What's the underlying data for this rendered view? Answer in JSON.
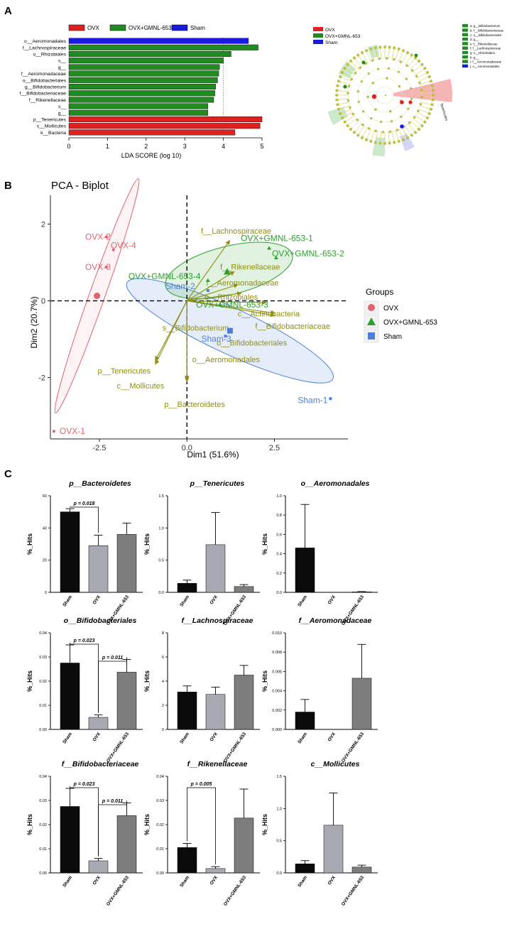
{
  "panel_labels": {
    "a": "A",
    "b": "B",
    "c": "C"
  },
  "colors": {
    "ovx": "#e02020",
    "gmnl": "#218a21",
    "sham": "#1a1adf",
    "pca_ovx": "#e0646e",
    "pca_gmnl": "#2ca02c",
    "pca_sham": "#4f7fd9",
    "loading": "#8f8f12",
    "clado_node": "#c8c820"
  },
  "panel_a": {
    "lda_chart": {
      "type": "bar",
      "orientation": "horizontal",
      "legend": [
        "OVX",
        "OVX+GMNL-653",
        "Sham"
      ],
      "categories": [
        "o__Aeromonadales",
        "f__Lachnospiraceae",
        "o__Rhizobiales",
        "s__",
        "g__",
        "f__Aeromonadaceae",
        "o__Bifidobacteriales",
        "g__Bifidobacterium",
        "f__Bifidobacteriaceae",
        "f__Rikenellaceae",
        "s__",
        "g__",
        "p__Tenericutes",
        "c__Mollicutes",
        "k__Bacteria"
      ],
      "groups": [
        "Sham",
        "OVX+GMNL-653",
        "OVX+GMNL-653",
        "OVX+GMNL-653",
        "OVX+GMNL-653",
        "OVX+GMNL-653",
        "OVX+GMNL-653",
        "OVX+GMNL-653",
        "OVX+GMNL-653",
        "OVX+GMNL-653",
        "OVX+GMNL-653",
        "OVX+GMNL-653",
        "OVX",
        "OVX",
        "OVX"
      ],
      "values": [
        4.65,
        4.9,
        4.2,
        4.0,
        3.9,
        3.88,
        3.85,
        3.8,
        3.78,
        3.75,
        3.6,
        3.6,
        5.0,
        4.95,
        4.3
      ],
      "xlim": [
        0,
        5
      ],
      "xticks": [
        "0",
        "1",
        "2",
        "3",
        "4",
        "5"
      ],
      "xlabel": "LDA SCORE (log 10)",
      "reference_line": 4
    },
    "cladogram": {
      "legend": [
        "OVX",
        "OVX+GMNL-653",
        "Sham"
      ],
      "taxa": [
        "a: g__Bifidobacterium",
        "b: f__Bifidobacteriaceae",
        "c: o__Bifidobacteriales",
        "d: g__",
        "e: f__Rikenellaceae",
        "f: f__Lachnospiraceae",
        "g: o__Rhizobiales",
        "h: g__",
        "i: f__Aeromonadaceae",
        "j: o__Aeromonadales"
      ],
      "highlighted_label": "Tenericutes"
    }
  },
  "panel_b": {
    "chart_data": {
      "type": "scatter",
      "title": "PCA - Biplot",
      "xlabel": "Dim1 (51.6%)",
      "ylabel": "Dim2 (20.7%)",
      "xlim": [
        -3.9,
        4.6
      ],
      "ylim": [
        -3.6,
        2.75
      ],
      "xticks": [
        -2.5,
        0.0,
        2.5
      ],
      "xtick_labels": [
        "-2.5",
        "0.0",
        "2.5"
      ],
      "yticks": [
        2,
        0,
        -2
      ],
      "ytick_labels": [
        "2",
        "0",
        "-2"
      ],
      "legend_title": "Groups",
      "legend": [
        "OVX",
        "OVX+GMNL-653",
        "Sham"
      ],
      "points": [
        {
          "label": "OVX-1",
          "group": "OVX",
          "x": -3.8,
          "y": -3.4
        },
        {
          "label": "OVX-2",
          "group": "OVX",
          "x": -2.3,
          "y": 1.67
        },
        {
          "label": "OVX-3",
          "group": "OVX",
          "x": -2.3,
          "y": 0.88
        },
        {
          "label": "OVX-4",
          "group": "OVX",
          "x": -2.1,
          "y": 1.33
        },
        {
          "label": "OVX+GMNL-653-1",
          "group": "OVX+GMNL-653",
          "x": 2.35,
          "y": 1.37
        },
        {
          "label": "OVX+GMNL-653-2",
          "group": "OVX+GMNL-653",
          "x": 2.55,
          "y": 1.12
        },
        {
          "label": "OVX+GMNL-653-3",
          "group": "OVX+GMNL-653",
          "x": 0.95,
          "y": -0.1
        },
        {
          "label": "OVX+GMNL-653-4",
          "group": "OVX+GMNL-653",
          "x": 0.6,
          "y": 0.53
        },
        {
          "label": "Sham-1",
          "group": "Sham",
          "x": 4.1,
          "y": -2.55
        },
        {
          "label": "Sham-2",
          "group": "Sham",
          "x": 0.6,
          "y": 0.27
        },
        {
          "label": "Sham-3",
          "group": "Sham",
          "x": 1.1,
          "y": -0.92
        }
      ],
      "group_centroids": [
        {
          "group": "OVX",
          "x": -2.57,
          "y": 0.13
        },
        {
          "group": "OVX+GMNL-653",
          "x": 1.15,
          "y": 0.76
        },
        {
          "group": "Sham",
          "x": 1.23,
          "y": -0.78
        }
      ],
      "loadings": [
        {
          "label": "f__Lachnospiraceae",
          "x": 1.22,
          "y": 1.57
        },
        {
          "label": "f__Rikenellaceae",
          "x": 1.35,
          "y": 0.76
        },
        {
          "label": "f__Aeromonadaceae",
          "x": 1.45,
          "y": 0.42
        },
        {
          "label": "o__Rhizobiales",
          "x": 1.55,
          "y": 0.2
        },
        {
          "label": "c__Actinobacteria",
          "x": 2.25,
          "y": -0.05
        },
        {
          "label": "f__Bifidobacteriaceae",
          "x": 2.5,
          "y": -0.32
        },
        {
          "label": "o__Bifidobacteriales",
          "x": 2.5,
          "y": -0.38
        },
        {
          "label": "p__Bacteroidetes",
          "x": 0.0,
          "y": -2.1
        },
        {
          "label": "o__Aeromonadales",
          "x": 0.0,
          "y": -2.05
        },
        {
          "label": "p__Tenericutes",
          "x": -0.9,
          "y": -1.65
        },
        {
          "label": "c__Mollicutes",
          "x": -0.9,
          "y": -1.55
        }
      ],
      "loading_labels": [
        {
          "text": "f__Lachnospiraceae",
          "x": 0.4,
          "y": 1.75
        },
        {
          "text": "f__Rikenellaceae",
          "x": 0.95,
          "y": 0.82
        },
        {
          "text": "f__Aeromonadaceae",
          "x": 0.55,
          "y": 0.4
        },
        {
          "text": "o__Rhizobiales",
          "x": 0.5,
          "y": 0.03
        },
        {
          "text": "c__Actinobacteria",
          "x": 1.45,
          "y": -0.41
        },
        {
          "text": "f__Bifidobacteriaceae",
          "x": 1.95,
          "y": -0.73
        },
        {
          "text": "o__Bifidobacteriales",
          "x": 0.85,
          "y": -1.17
        },
        {
          "text": "s__Bifidobacterium",
          "x": -0.7,
          "y": -0.78
        },
        {
          "text": "o__Aeromonadales",
          "x": 0.15,
          "y": -1.6
        },
        {
          "text": "p__Tenericutes",
          "x": -2.55,
          "y": -1.9
        },
        {
          "text": "c__Mollicutes",
          "x": -2.0,
          "y": -2.29
        },
        {
          "text": "p__Bacteroidetes",
          "x": -0.65,
          "y": -2.77
        }
      ],
      "point_label_offsets_note": "labels drawn beside points"
    }
  },
  "panel_c": {
    "chart_data": [
      {
        "type": "bar",
        "title": "p__Bacteroidetes",
        "ylabel": "%_Hits",
        "categories": [
          "Sham",
          "OVX",
          "OVX+GMNL-653"
        ],
        "values": [
          50,
          29,
          36
        ],
        "errors": [
          2,
          6.5,
          7
        ],
        "ylim": [
          0,
          60
        ],
        "yticks": [
          "0",
          "20",
          "40",
          "60"
        ],
        "annotations": [
          {
            "text": "p = 0.018",
            "from": 0,
            "to": 1
          }
        ]
      },
      {
        "type": "bar",
        "title": "p__Tenericutes",
        "ylabel": "%_Hits",
        "categories": [
          "Sham",
          "OVX",
          "OVX+GMNL-653"
        ],
        "values": [
          0.14,
          0.74,
          0.09
        ],
        "errors": [
          0.05,
          0.5,
          0.03
        ],
        "ylim": [
          0,
          1.5
        ],
        "yticks": [
          "0.0",
          "0.5",
          "1.0",
          "1.5"
        ],
        "annotations": []
      },
      {
        "type": "bar",
        "title": "o__Aeromonadales",
        "ylabel": "%_Hits",
        "categories": [
          "Sham",
          "OVX",
          "OVX+GMNL-653"
        ],
        "values": [
          0.46,
          0.0,
          0.005
        ],
        "errors": [
          0.45,
          0.0,
          0.003
        ],
        "ylim": [
          0,
          1.0
        ],
        "yticks": [
          "0.0",
          "0.2",
          "0.4",
          "0.6",
          "0.8",
          "1.0"
        ],
        "annotations": []
      },
      {
        "type": "bar",
        "title": "o__Bifidobacteriales",
        "ylabel": "%_Hits",
        "categories": [
          "Sham",
          "OVX",
          "OVX+GMNL-653"
        ],
        "values": [
          0.0275,
          0.005,
          0.0237
        ],
        "errors": [
          0.0075,
          0.001,
          0.0053
        ],
        "ylim": [
          0,
          0.04
        ],
        "yticks": [
          "0.00",
          "0.01",
          "0.02",
          "0.03",
          "0.04"
        ],
        "annotations": [
          {
            "text": "p = 0.023",
            "from": 0,
            "to": 1
          },
          {
            "text": "p = 0.011",
            "from": 1,
            "to": 2
          }
        ]
      },
      {
        "type": "bar",
        "title": "f__Lachnospiraceae",
        "ylabel": "%_Hits",
        "categories": [
          "Sham",
          "OVX",
          "OVX+GMNL-653"
        ],
        "values": [
          3.1,
          2.9,
          4.5
        ],
        "errors": [
          0.5,
          0.6,
          0.8
        ],
        "ylim": [
          0,
          8
        ],
        "yticks": [
          "0",
          "2",
          "4",
          "6",
          "8"
        ],
        "annotations": []
      },
      {
        "type": "bar",
        "title": "f__Aeromonadaceae",
        "ylabel": "%_Hits",
        "categories": [
          "Sham",
          "OVX",
          "OVX+GMNL-653"
        ],
        "values": [
          0.0018,
          0.0,
          0.0053
        ],
        "errors": [
          0.0013,
          0.0,
          0.0035
        ],
        "ylim": [
          0,
          0.01
        ],
        "yticks": [
          "0.000",
          "0.002",
          "0.004",
          "0.006",
          "0.008",
          "0.010"
        ],
        "annotations": []
      },
      {
        "type": "bar",
        "title": "f__Bifidobacteriaceae",
        "ylabel": "%_Hits",
        "categories": [
          "Sham",
          "OVX",
          "OVX+GMNL-653"
        ],
        "values": [
          0.0275,
          0.005,
          0.0237
        ],
        "errors": [
          0.0075,
          0.001,
          0.0053
        ],
        "ylim": [
          0,
          0.04
        ],
        "yticks": [
          "0.00",
          "0.01",
          "0.02",
          "0.03",
          "0.04"
        ],
        "annotations": [
          {
            "text": "p = 0.023",
            "from": 0,
            "to": 1
          },
          {
            "text": "p = 0.011",
            "from": 1,
            "to": 2
          }
        ]
      },
      {
        "type": "bar",
        "title": "f__Rikenellaceae",
        "ylabel": "%_Hits",
        "categories": [
          "Sham",
          "OVX",
          "OVX+GMNL-653"
        ],
        "values": [
          0.0105,
          0.0018,
          0.0227
        ],
        "errors": [
          0.0017,
          0.0008,
          0.012
        ],
        "ylim": [
          0,
          0.04
        ],
        "yticks": [
          "0.00",
          "0.01",
          "0.02",
          "0.03",
          "0.04"
        ],
        "annotations": [
          {
            "text": "p = 0.005",
            "from": 0,
            "to": 1
          }
        ]
      },
      {
        "type": "bar",
        "title": "c__Mollicutes",
        "ylabel": "%_Hits",
        "categories": [
          "Sham",
          "OVX",
          "OVX+GMNL-653"
        ],
        "values": [
          0.14,
          0.74,
          0.09
        ],
        "errors": [
          0.05,
          0.5,
          0.03
        ],
        "ylim": [
          0,
          1.5
        ],
        "yticks": [
          "0.0",
          "0.5",
          "1.0",
          "1.5"
        ],
        "annotations": []
      }
    ]
  }
}
